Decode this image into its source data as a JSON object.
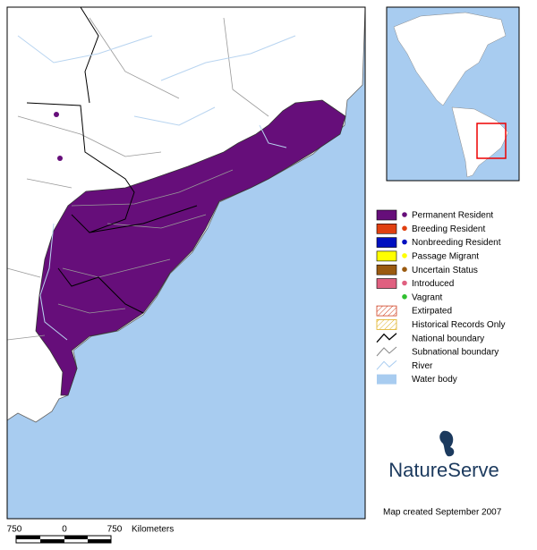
{
  "legend": {
    "items": [
      {
        "label": "Permanent Resident"
      },
      {
        "label": "Breeding Resident"
      },
      {
        "label": "Nonbreeding Resident"
      },
      {
        "label": "Passage Migrant"
      },
      {
        "label": "Uncertain Status"
      },
      {
        "label": "Introduced"
      },
      {
        "label": "Vagrant"
      },
      {
        "label": "Extirpated"
      },
      {
        "label": "Historical Records Only"
      },
      {
        "label": "National boundary"
      },
      {
        "label": "Subnational boundary"
      },
      {
        "label": "River"
      },
      {
        "label": "Water body"
      }
    ]
  },
  "logo": {
    "text": "NatureServe"
  },
  "credit": "Map created September 2007",
  "scale": {
    "labels": [
      750,
      0,
      750
    ],
    "unit": "Kilometers"
  }
}
